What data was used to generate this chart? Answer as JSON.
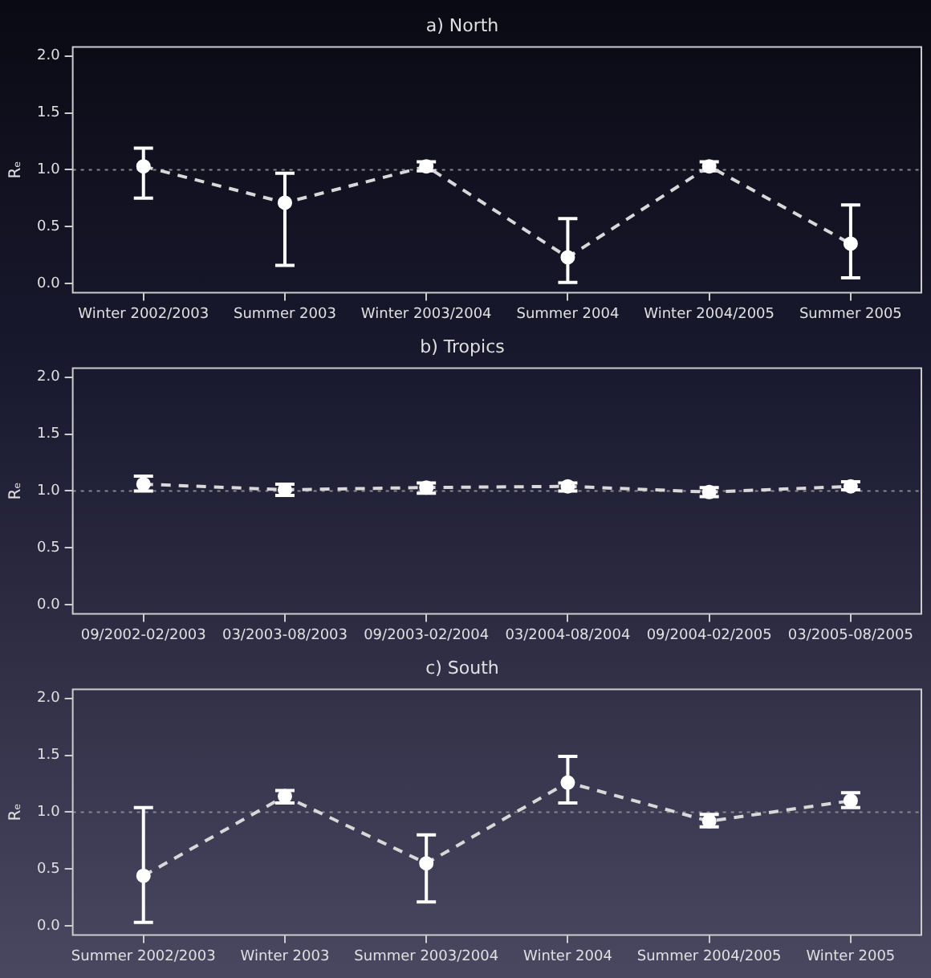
{
  "chart_data": [
    {
      "type": "line",
      "title": "a) North",
      "ylabel": "Rₑ",
      "categories": [
        "Winter 2002/2003",
        "Summer 2003",
        "Winter 2003/2004",
        "Summer 2004",
        "Winter 2004/2005",
        "Summer 2005"
      ],
      "values": [
        1.03,
        0.71,
        1.03,
        0.23,
        1.03,
        0.35
      ],
      "errors": [
        [
          0.75,
          1.19
        ],
        [
          0.16,
          0.97
        ],
        [
          0.99,
          1.07
        ],
        [
          0.01,
          0.57
        ],
        [
          0.99,
          1.07
        ],
        [
          0.05,
          0.69
        ]
      ],
      "color": "#d8d8d8",
      "ylim": [
        -0.08,
        2.08
      ],
      "yticks": [
        {
          "value": 0,
          "label": "0.0"
        },
        {
          "value": 0.5,
          "label": "0.5"
        },
        {
          "value": 1,
          "label": "1.0"
        },
        {
          "value": 1.5,
          "label": "1.5"
        },
        {
          "value": 2,
          "label": "2.0"
        }
      ],
      "marker": "circle",
      "line_style": "dashed",
      "grid": false,
      "legend": false,
      "ref_lines": [
        {
          "axis": "y",
          "value": 1,
          "line_style": "dotted",
          "color": "#888888"
        }
      ]
    },
    {
      "type": "line",
      "title": "b) Tropics",
      "ylabel": "Rₑ",
      "categories": [
        "09/2002-02/2003",
        "03/2003-08/2003",
        "09/2003-02/2004",
        "03/2004-08/2004",
        "09/2004-02/2005",
        "03/2005-08/2005"
      ],
      "values": [
        1.06,
        1.01,
        1.03,
        1.04,
        0.99,
        1.04
      ],
      "errors": [
        [
          1.0,
          1.13
        ],
        [
          0.96,
          1.06
        ],
        [
          0.98,
          1.07
        ],
        [
          1.0,
          1.07
        ],
        [
          0.95,
          1.03
        ],
        [
          1.01,
          1.08
        ]
      ],
      "color": "#d8d8d8",
      "ylim": [
        -0.08,
        2.08
      ],
      "yticks": [
        {
          "value": 0,
          "label": "0.0"
        },
        {
          "value": 0.5,
          "label": "0.5"
        },
        {
          "value": 1,
          "label": "1.0"
        },
        {
          "value": 1.5,
          "label": "1.5"
        },
        {
          "value": 2,
          "label": "2.0"
        }
      ],
      "marker": "circle",
      "line_style": "dashed",
      "grid": false,
      "legend": false,
      "ref_lines": [
        {
          "axis": "y",
          "value": 1,
          "line_style": "dotted",
          "color": "#888888"
        }
      ]
    },
    {
      "type": "line",
      "title": "c) South",
      "ylabel": "Rₑ",
      "categories": [
        "Summer 2002/2003",
        "Winter 2003",
        "Summer 2003/2004",
        "Winter 2004",
        "Summer 2004/2005",
        "Winter 2005"
      ],
      "values": [
        0.44,
        1.14,
        0.55,
        1.26,
        0.92,
        1.1
      ],
      "errors": [
        [
          0.03,
          1.04
        ],
        [
          1.08,
          1.19
        ],
        [
          0.21,
          0.8
        ],
        [
          1.08,
          1.49
        ],
        [
          0.87,
          0.98
        ],
        [
          1.04,
          1.17
        ]
      ],
      "color": "#d8d8d8",
      "ylim": [
        -0.08,
        2.08
      ],
      "yticks": [
        {
          "value": 0,
          "label": "0.0"
        },
        {
          "value": 0.5,
          "label": "0.5"
        },
        {
          "value": 1,
          "label": "1.0"
        },
        {
          "value": 1.5,
          "label": "1.5"
        },
        {
          "value": 2,
          "label": "2.0"
        }
      ],
      "marker": "circle",
      "line_style": "dashed",
      "grid": false,
      "legend": false,
      "ref_lines": [
        {
          "axis": "y",
          "value": 1,
          "line_style": "dotted",
          "color": "#888888"
        }
      ]
    }
  ]
}
